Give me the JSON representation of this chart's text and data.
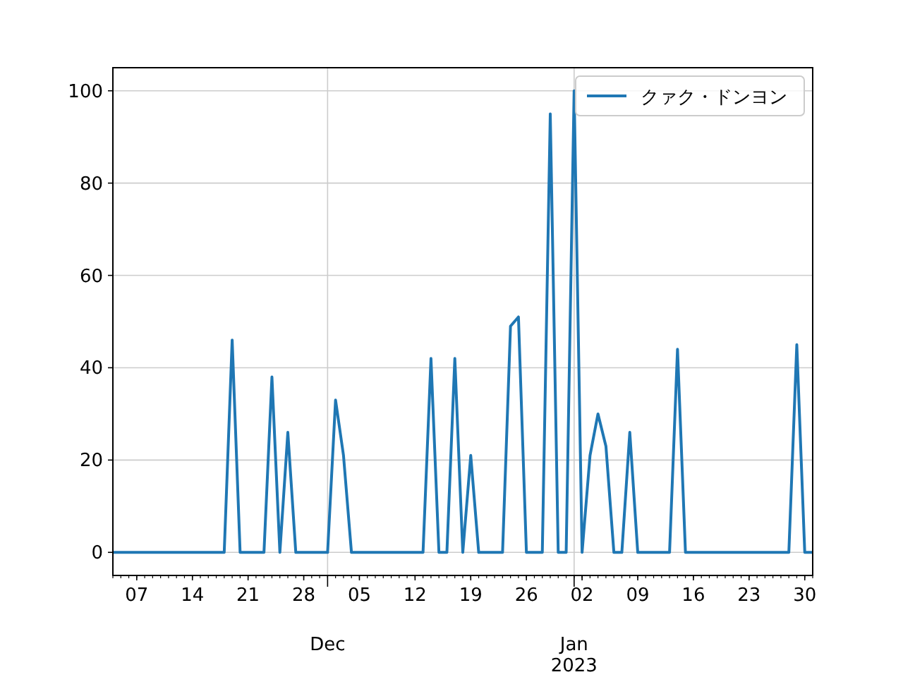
{
  "chart_data": {
    "type": "line",
    "x": [
      "2022-11-04",
      "2022-11-05",
      "2022-11-06",
      "2022-11-07",
      "2022-11-08",
      "2022-11-09",
      "2022-11-10",
      "2022-11-11",
      "2022-11-12",
      "2022-11-13",
      "2022-11-14",
      "2022-11-15",
      "2022-11-16",
      "2022-11-17",
      "2022-11-18",
      "2022-11-19",
      "2022-11-20",
      "2022-11-21",
      "2022-11-22",
      "2022-11-23",
      "2022-11-24",
      "2022-11-25",
      "2022-11-26",
      "2022-11-27",
      "2022-11-28",
      "2022-11-29",
      "2022-11-30",
      "2022-12-01",
      "2022-12-02",
      "2022-12-03",
      "2022-12-04",
      "2022-12-05",
      "2022-12-06",
      "2022-12-07",
      "2022-12-08",
      "2022-12-09",
      "2022-12-10",
      "2022-12-11",
      "2022-12-12",
      "2022-12-13",
      "2022-12-14",
      "2022-12-15",
      "2022-12-16",
      "2022-12-17",
      "2022-12-18",
      "2022-12-19",
      "2022-12-20",
      "2022-12-21",
      "2022-12-22",
      "2022-12-23",
      "2022-12-24",
      "2022-12-25",
      "2022-12-26",
      "2022-12-27",
      "2022-12-28",
      "2022-12-29",
      "2022-12-30",
      "2022-12-31",
      "2023-01-01",
      "2023-01-02",
      "2023-01-03",
      "2023-01-04",
      "2023-01-05",
      "2023-01-06",
      "2023-01-07",
      "2023-01-08",
      "2023-01-09",
      "2023-01-10",
      "2023-01-11",
      "2023-01-12",
      "2023-01-13",
      "2023-01-14",
      "2023-01-15",
      "2023-01-16",
      "2023-01-17",
      "2023-01-18",
      "2023-01-19",
      "2023-01-20",
      "2023-01-21",
      "2023-01-22",
      "2023-01-23",
      "2023-01-24",
      "2023-01-25",
      "2023-01-26",
      "2023-01-27",
      "2023-01-28",
      "2023-01-29",
      "2023-01-30",
      "2023-01-31"
    ],
    "series": [
      {
        "name": "クァク・ドンヨン",
        "color": "#1f77b4",
        "values": [
          0,
          0,
          0,
          0,
          0,
          0,
          0,
          0,
          0,
          0,
          0,
          0,
          0,
          0,
          0,
          46,
          0,
          0,
          0,
          0,
          38,
          0,
          26,
          0,
          0,
          0,
          0,
          0,
          33,
          21,
          0,
          0,
          0,
          0,
          0,
          0,
          0,
          0,
          0,
          0,
          42,
          0,
          0,
          42,
          0,
          21,
          0,
          0,
          0,
          0,
          49,
          51,
          0,
          0,
          0,
          95,
          0,
          0,
          100,
          0,
          21,
          30,
          23,
          0,
          0,
          26,
          0,
          0,
          0,
          0,
          0,
          44,
          0,
          0,
          0,
          0,
          0,
          0,
          0,
          0,
          0,
          0,
          0,
          0,
          0,
          0,
          45,
          0,
          0
        ]
      }
    ],
    "xlim": [
      "2022-11-04",
      "2023-01-31"
    ],
    "ylim": [
      -5,
      105
    ],
    "yticks": [
      0,
      20,
      40,
      60,
      80,
      100
    ],
    "xticks": [
      {
        "value": "2022-11-07",
        "label": "07"
      },
      {
        "value": "2022-11-14",
        "label": "14"
      },
      {
        "value": "2022-11-21",
        "label": "21"
      },
      {
        "value": "2022-11-28",
        "label": "28"
      },
      {
        "value": "2022-12-01",
        "label": null
      },
      {
        "value": "2022-12-05",
        "label": "05"
      },
      {
        "value": "2022-12-12",
        "label": "12"
      },
      {
        "value": "2022-12-19",
        "label": "19"
      },
      {
        "value": "2022-12-26",
        "label": "26"
      },
      {
        "value": "2023-01-01",
        "label": null
      },
      {
        "value": "2023-01-02",
        "label": "02"
      },
      {
        "value": "2023-01-09",
        "label": "09"
      },
      {
        "value": "2023-01-16",
        "label": "16"
      },
      {
        "value": "2023-01-23",
        "label": "23"
      },
      {
        "value": "2023-01-30",
        "label": "30"
      }
    ],
    "annotations": [
      "Dec",
      "Jan\n2023"
    ],
    "grid": true,
    "legend": "top right",
    "marker": "none",
    "line_style": "solid"
  }
}
